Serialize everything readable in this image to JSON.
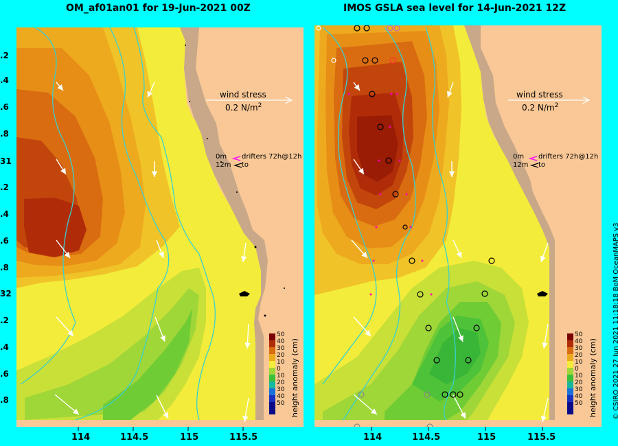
{
  "left_panel": {
    "title": "OM_af01an01 for 19-Jun-2021 00Z",
    "wind_label": "wind stress",
    "wind_value": "0.2 N/m",
    "wind_sup": "2"
  },
  "right_panel": {
    "title": "IMOS GSLA sea level  for 14-Jun-2021 12Z",
    "wind_label": "wind stress",
    "wind_value": "0.2 N/m",
    "wind_sup": "2",
    "drifters_label": "drifters 72h@12h",
    "drifters_depth_top": "0m",
    "drifters_depth_bottom": "12m",
    "drifters_to": "to"
  },
  "left_drifters": {
    "drifters_label": "drifters 72h@12h",
    "depth_top": "0m",
    "depth_bottom": "12m",
    "to": "to"
  },
  "y_axis_labels": [
    ".2",
    ".4",
    ".6",
    ".8",
    "31",
    ".2",
    ".4",
    ".6",
    ".8",
    "32",
    ".2",
    ".4",
    ".6",
    ".8"
  ],
  "x_axis_labels": [
    "114",
    "114.5",
    "115",
    "115.5"
  ],
  "colorbar": {
    "title": "height anomaly (cm)",
    "ticks": [
      "50",
      "40",
      "30",
      "20",
      "10",
      "0",
      "10",
      "20",
      "30",
      "40",
      "50"
    ]
  },
  "copyright": "© CSIRO 2021   27 Jun 2021 11:18:18 BoM OceanMAPS v3",
  "colors": {
    "background": "#00ffff",
    "land": "#f9c896",
    "coast": "#c8a888"
  }
}
